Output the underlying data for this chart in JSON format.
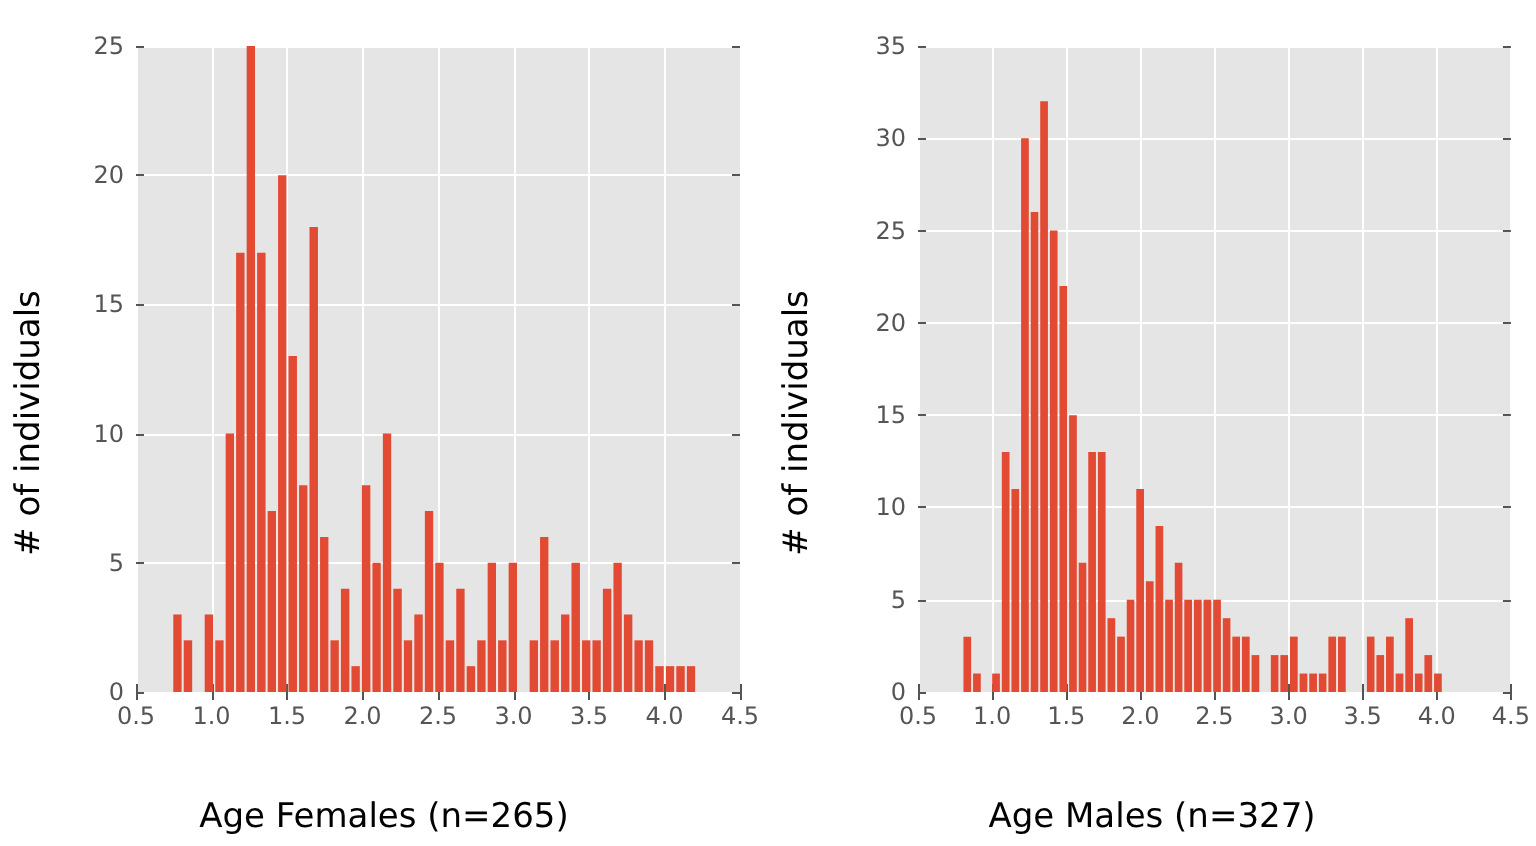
{
  "chart_data": [
    {
      "type": "histogram",
      "xlabel": "Age Females (n=265)",
      "ylabel": "# of individuals",
      "color": "#e24a33",
      "grid": true,
      "bins": [
        0.74,
        0.809,
        0.879,
        0.948,
        1.018,
        1.087,
        1.156,
        1.226,
        1.295,
        1.365,
        1.434,
        1.503,
        1.573,
        1.642,
        1.712,
        1.781,
        1.85,
        1.92,
        1.989,
        2.059,
        2.128,
        2.197,
        2.267,
        2.336,
        2.406,
        2.475,
        2.544,
        2.614,
        2.683,
        2.753,
        2.822,
        2.891,
        2.961,
        3.03,
        3.1,
        3.169,
        3.238,
        3.308,
        3.377,
        3.447,
        3.516,
        3.585,
        3.655,
        3.724,
        3.794,
        3.863,
        3.932,
        4.002,
        4.071,
        4.141,
        4.21
      ],
      "values": [
        3,
        2,
        0,
        3,
        2,
        10,
        17,
        25,
        17,
        7,
        20,
        13,
        8,
        18,
        6,
        2,
        4,
        1,
        8,
        5,
        10,
        4,
        2,
        3,
        7,
        5,
        2,
        4,
        1,
        2,
        5,
        2,
        5,
        0,
        2,
        6,
        2,
        3,
        5,
        2,
        2,
        4,
        5,
        3,
        2,
        2,
        1,
        1,
        1,
        1
      ],
      "xlim": [
        0.5,
        4.5
      ],
      "xticks": [
        {
          "value": 0.5,
          "label": "0.5"
        },
        {
          "value": 1,
          "label": "1.0"
        },
        {
          "value": 1.5,
          "label": "1.5"
        },
        {
          "value": 2,
          "label": "2.0"
        },
        {
          "value": 2.5,
          "label": "2.5"
        },
        {
          "value": 3,
          "label": "3.0"
        },
        {
          "value": 3.5,
          "label": "3.5"
        },
        {
          "value": 4,
          "label": "4.0"
        },
        {
          "value": 4.5,
          "label": "4.5"
        }
      ],
      "ylim": [
        0,
        25
      ],
      "yticks": [
        0,
        5,
        10,
        15,
        20,
        25
      ]
    },
    {
      "type": "histogram",
      "xlabel": "Age Males (n=327)",
      "ylabel": "# of individuals",
      "color": "#e24a33",
      "grid": true,
      "bins": [
        0.8,
        0.865,
        0.93,
        0.994,
        1.059,
        1.124,
        1.189,
        1.254,
        1.318,
        1.383,
        1.448,
        1.513,
        1.578,
        1.642,
        1.707,
        1.772,
        1.837,
        1.902,
        1.966,
        2.031,
        2.096,
        2.161,
        2.226,
        2.29,
        2.355,
        2.42,
        2.485,
        2.55,
        2.614,
        2.679,
        2.744,
        2.809,
        2.874,
        2.938,
        3.003,
        3.068,
        3.133,
        3.198,
        3.262,
        3.327,
        3.392,
        3.457,
        3.522,
        3.586,
        3.651,
        3.716,
        3.781,
        3.846,
        3.91,
        3.975,
        4.04
      ],
      "values": [
        3,
        1,
        0,
        1,
        13,
        11,
        30,
        26,
        32,
        25,
        22,
        15,
        7,
        13,
        13,
        4,
        3,
        5,
        11,
        6,
        9,
        5,
        7,
        5,
        5,
        5,
        5,
        4,
        3,
        3,
        2,
        0,
        2,
        2,
        3,
        1,
        1,
        1,
        3,
        3,
        0,
        0,
        3,
        2,
        3,
        1,
        4,
        1,
        2,
        1
      ],
      "xlim": [
        0.5,
        4.5
      ],
      "xticks": [
        {
          "value": 0.5,
          "label": "0.5"
        },
        {
          "value": 1,
          "label": "1.0"
        },
        {
          "value": 1.5,
          "label": "1.5"
        },
        {
          "value": 2,
          "label": "2.0"
        },
        {
          "value": 2.5,
          "label": "2.5"
        },
        {
          "value": 3,
          "label": "3.0"
        },
        {
          "value": 3.5,
          "label": "3.5"
        },
        {
          "value": 4,
          "label": "4.0"
        },
        {
          "value": 4.5,
          "label": "4.5"
        }
      ],
      "ylim": [
        0,
        35
      ],
      "yticks": [
        0,
        5,
        10,
        15,
        20,
        25,
        30,
        35
      ]
    }
  ]
}
